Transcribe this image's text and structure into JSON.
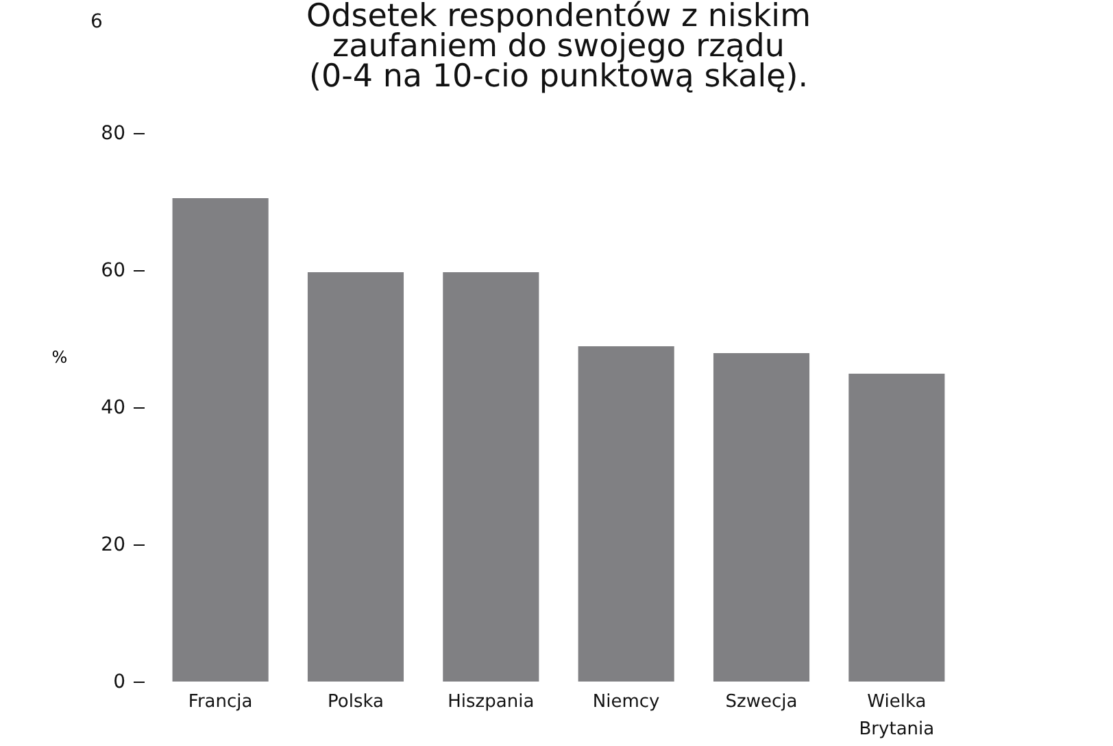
{
  "chart_data": {
    "type": "bar",
    "title": "Odsetek respondentów z niskim\nzaufaniem do swojego rządu\n(0-4 na 10-cio punktową skalę).",
    "ylabel": "%",
    "categories": [
      "Francja",
      "Polska",
      "Hiszpania",
      "Niemcy",
      "Szwecja",
      "Wielka Brytania"
    ],
    "values": [
      70.5,
      59.7,
      59.7,
      48.9,
      47.9,
      44.9
    ],
    "color": "#808083",
    "ylim": [
      0,
      80
    ],
    "yticks": [
      0,
      20,
      40,
      60,
      80
    ],
    "grid": false,
    "annotations": [
      "6"
    ]
  }
}
